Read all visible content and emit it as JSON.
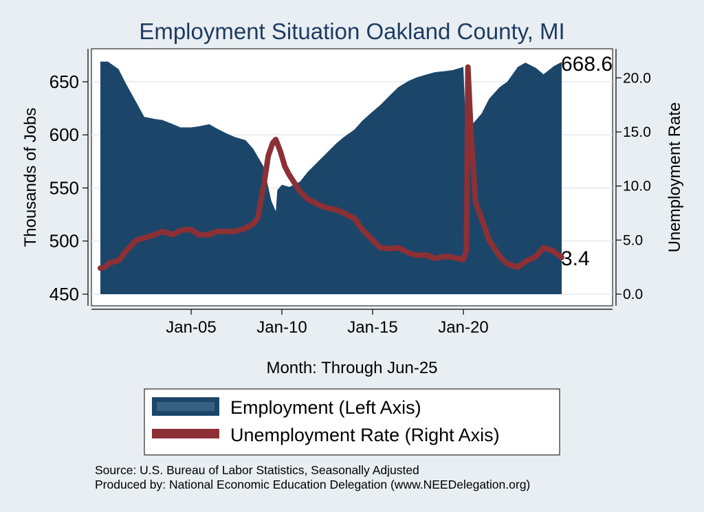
{
  "chart_data": {
    "type": "area",
    "title": "Employment Situation Oakland  County, MI",
    "xlabel": "Month: Through Jun-25",
    "ylabel": "Thousands of Jobs",
    "y2label": "Unemployment Rate",
    "x_range": [
      "2000-01",
      "2025-06"
    ],
    "x_ticks": [
      "Jan-05",
      "Jan-10",
      "Jan-15",
      "Jan-20"
    ],
    "ylim": [
      450,
      672
    ],
    "y_ticks": [
      "450",
      "500",
      "550",
      "600",
      "650"
    ],
    "y2lim": [
      0,
      21.8
    ],
    "y2_ticks": [
      "0.0",
      "5.0",
      "10.0",
      "15.0",
      "20.0"
    ],
    "grid": true,
    "legend_position": "bottom",
    "series": [
      {
        "name": "Employment (Left Axis)",
        "axis": "left",
        "style": "area",
        "color": "#1c4669",
        "points": [
          [
            "2000-01",
            669
          ],
          [
            "2000-06",
            669
          ],
          [
            "2001-01",
            662
          ],
          [
            "2001-06",
            648
          ],
          [
            "2002-01",
            630
          ],
          [
            "2002-06",
            617
          ],
          [
            "2003-01",
            615
          ],
          [
            "2003-06",
            614
          ],
          [
            "2004-01",
            610
          ],
          [
            "2004-06",
            607
          ],
          [
            "2005-01",
            607
          ],
          [
            "2005-06",
            608
          ],
          [
            "2006-01",
            610
          ],
          [
            "2006-06",
            606
          ],
          [
            "2007-01",
            601
          ],
          [
            "2007-06",
            598
          ],
          [
            "2008-01",
            595
          ],
          [
            "2008-06",
            587
          ],
          [
            "2009-01",
            570
          ],
          [
            "2009-06",
            538
          ],
          [
            "2009-09",
            528
          ],
          [
            "2009-10",
            548
          ],
          [
            "2010-01",
            553
          ],
          [
            "2010-06",
            551
          ],
          [
            "2011-01",
            556
          ],
          [
            "2011-06",
            565
          ],
          [
            "2012-01",
            575
          ],
          [
            "2012-06",
            582
          ],
          [
            "2013-01",
            592
          ],
          [
            "2013-06",
            598
          ],
          [
            "2014-01",
            605
          ],
          [
            "2014-06",
            613
          ],
          [
            "2015-01",
            622
          ],
          [
            "2015-06",
            628
          ],
          [
            "2016-01",
            638
          ],
          [
            "2016-06",
            645
          ],
          [
            "2017-01",
            651
          ],
          [
            "2017-06",
            654
          ],
          [
            "2018-01",
            657
          ],
          [
            "2018-06",
            659
          ],
          [
            "2019-01",
            660
          ],
          [
            "2019-06",
            661
          ],
          [
            "2020-01",
            664
          ],
          [
            "2020-04",
            560
          ],
          [
            "2020-07",
            610
          ],
          [
            "2021-01",
            620
          ],
          [
            "2021-06",
            634
          ],
          [
            "2022-01",
            645
          ],
          [
            "2022-06",
            650
          ],
          [
            "2023-01",
            664
          ],
          [
            "2023-06",
            668
          ],
          [
            "2024-01",
            663
          ],
          [
            "2024-06",
            657
          ],
          [
            "2025-01",
            665
          ],
          [
            "2025-06",
            668.6
          ]
        ]
      },
      {
        "name": "Unemployment Rate (Right Axis)",
        "axis": "right",
        "style": "line",
        "color": "#8c3035",
        "points": [
          [
            "2000-01",
            2.4
          ],
          [
            "2000-04",
            2.5
          ],
          [
            "2000-07",
            2.9
          ],
          [
            "2001-01",
            3.1
          ],
          [
            "2001-06",
            4.0
          ],
          [
            "2002-01",
            5.0
          ],
          [
            "2002-06",
            5.2
          ],
          [
            "2003-01",
            5.5
          ],
          [
            "2003-06",
            5.8
          ],
          [
            "2004-01",
            5.5
          ],
          [
            "2004-06",
            5.9
          ],
          [
            "2005-01",
            6.0
          ],
          [
            "2005-06",
            5.5
          ],
          [
            "2006-01",
            5.5
          ],
          [
            "2006-06",
            5.8
          ],
          [
            "2007-01",
            5.8
          ],
          [
            "2007-06",
            5.8
          ],
          [
            "2008-01",
            6.1
          ],
          [
            "2008-06",
            6.5
          ],
          [
            "2008-09",
            7.0
          ],
          [
            "2009-01",
            10.0
          ],
          [
            "2009-04",
            12.8
          ],
          [
            "2009-07",
            14.0
          ],
          [
            "2009-09",
            14.3
          ],
          [
            "2009-12",
            13.2
          ],
          [
            "2010-03",
            11.8
          ],
          [
            "2010-06",
            11.0
          ],
          [
            "2011-01",
            9.5
          ],
          [
            "2011-06",
            8.8
          ],
          [
            "2012-01",
            8.3
          ],
          [
            "2012-06",
            8.0
          ],
          [
            "2013-01",
            7.8
          ],
          [
            "2013-06",
            7.5
          ],
          [
            "2014-01",
            7.0
          ],
          [
            "2014-06",
            6.0
          ],
          [
            "2015-01",
            5.0
          ],
          [
            "2015-06",
            4.3
          ],
          [
            "2016-01",
            4.2
          ],
          [
            "2016-06",
            4.3
          ],
          [
            "2017-01",
            3.8
          ],
          [
            "2017-06",
            3.6
          ],
          [
            "2018-01",
            3.6
          ],
          [
            "2018-06",
            3.3
          ],
          [
            "2019-01",
            3.5
          ],
          [
            "2019-06",
            3.4
          ],
          [
            "2020-01",
            3.2
          ],
          [
            "2020-03",
            4.0
          ],
          [
            "2020-04",
            21.0
          ],
          [
            "2020-06",
            15.0
          ],
          [
            "2020-09",
            8.5
          ],
          [
            "2021-01",
            7.0
          ],
          [
            "2021-06",
            5.0
          ],
          [
            "2022-01",
            3.5
          ],
          [
            "2022-06",
            2.8
          ],
          [
            "2023-01",
            2.5
          ],
          [
            "2023-06",
            3.0
          ],
          [
            "2024-01",
            3.5
          ],
          [
            "2024-06",
            4.3
          ],
          [
            "2024-12",
            4.0
          ],
          [
            "2025-06",
            3.4
          ]
        ]
      }
    ],
    "annotations": [
      {
        "series": "Employment (Left Axis)",
        "text": "668.6"
      },
      {
        "series": "Unemployment Rate (Right Axis)",
        "text": "3.4"
      }
    ]
  },
  "legend": {
    "items": [
      {
        "label": "Employment (Left Axis)",
        "color": "#1c4669"
      },
      {
        "label": "Unemployment Rate (Right Axis)",
        "color": "#8c3035"
      }
    ]
  },
  "footer": {
    "source": "Source: U.S. Bureau of Labor Statistics, Seasonally Adjusted",
    "produced_by": "Produced by: National Economic Education Delegation (www.NEEDelegation.org)"
  }
}
